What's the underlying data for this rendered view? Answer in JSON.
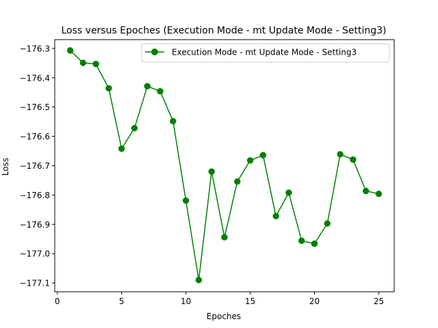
{
  "chart_data": {
    "type": "line",
    "title": "Loss versus Epoches (Execution Mode - mt Update Mode - Setting3)",
    "xlabel": "Epoches",
    "ylabel": "Loss",
    "xlim": [
      -0.2,
      26.2
    ],
    "ylim": [
      -177.13,
      -176.27
    ],
    "xticks": [
      0,
      5,
      10,
      15,
      20,
      25
    ],
    "yticks": [
      -176.3,
      -176.4,
      -176.5,
      -176.6,
      -176.7,
      -176.8,
      -176.9,
      -177.0,
      -177.1
    ],
    "ytick_labels": [
      "−176.3",
      "−176.4",
      "−176.5",
      "−176.6",
      "−176.7",
      "−176.8",
      "−176.9",
      "−177.0",
      "−177.1"
    ],
    "grid": false,
    "legend_position": "top-right",
    "series": [
      {
        "name": "Execution Mode - mt Update Mode - Setting3",
        "color": "#008000",
        "marker": "circle",
        "x": [
          1,
          2,
          3,
          4,
          5,
          6,
          7,
          8,
          9,
          10,
          11,
          12,
          13,
          14,
          15,
          16,
          17,
          18,
          19,
          20,
          21,
          22,
          23,
          24,
          25
        ],
        "y": [
          -176.307,
          -176.349,
          -176.353,
          -176.436,
          -176.642,
          -176.572,
          -176.429,
          -176.446,
          -176.548,
          -176.819,
          -177.09,
          -176.72,
          -176.944,
          -176.754,
          -176.682,
          -176.664,
          -176.872,
          -176.792,
          -176.956,
          -176.966,
          -176.897,
          -176.661,
          -176.679,
          -176.786,
          -176.796
        ]
      }
    ]
  }
}
